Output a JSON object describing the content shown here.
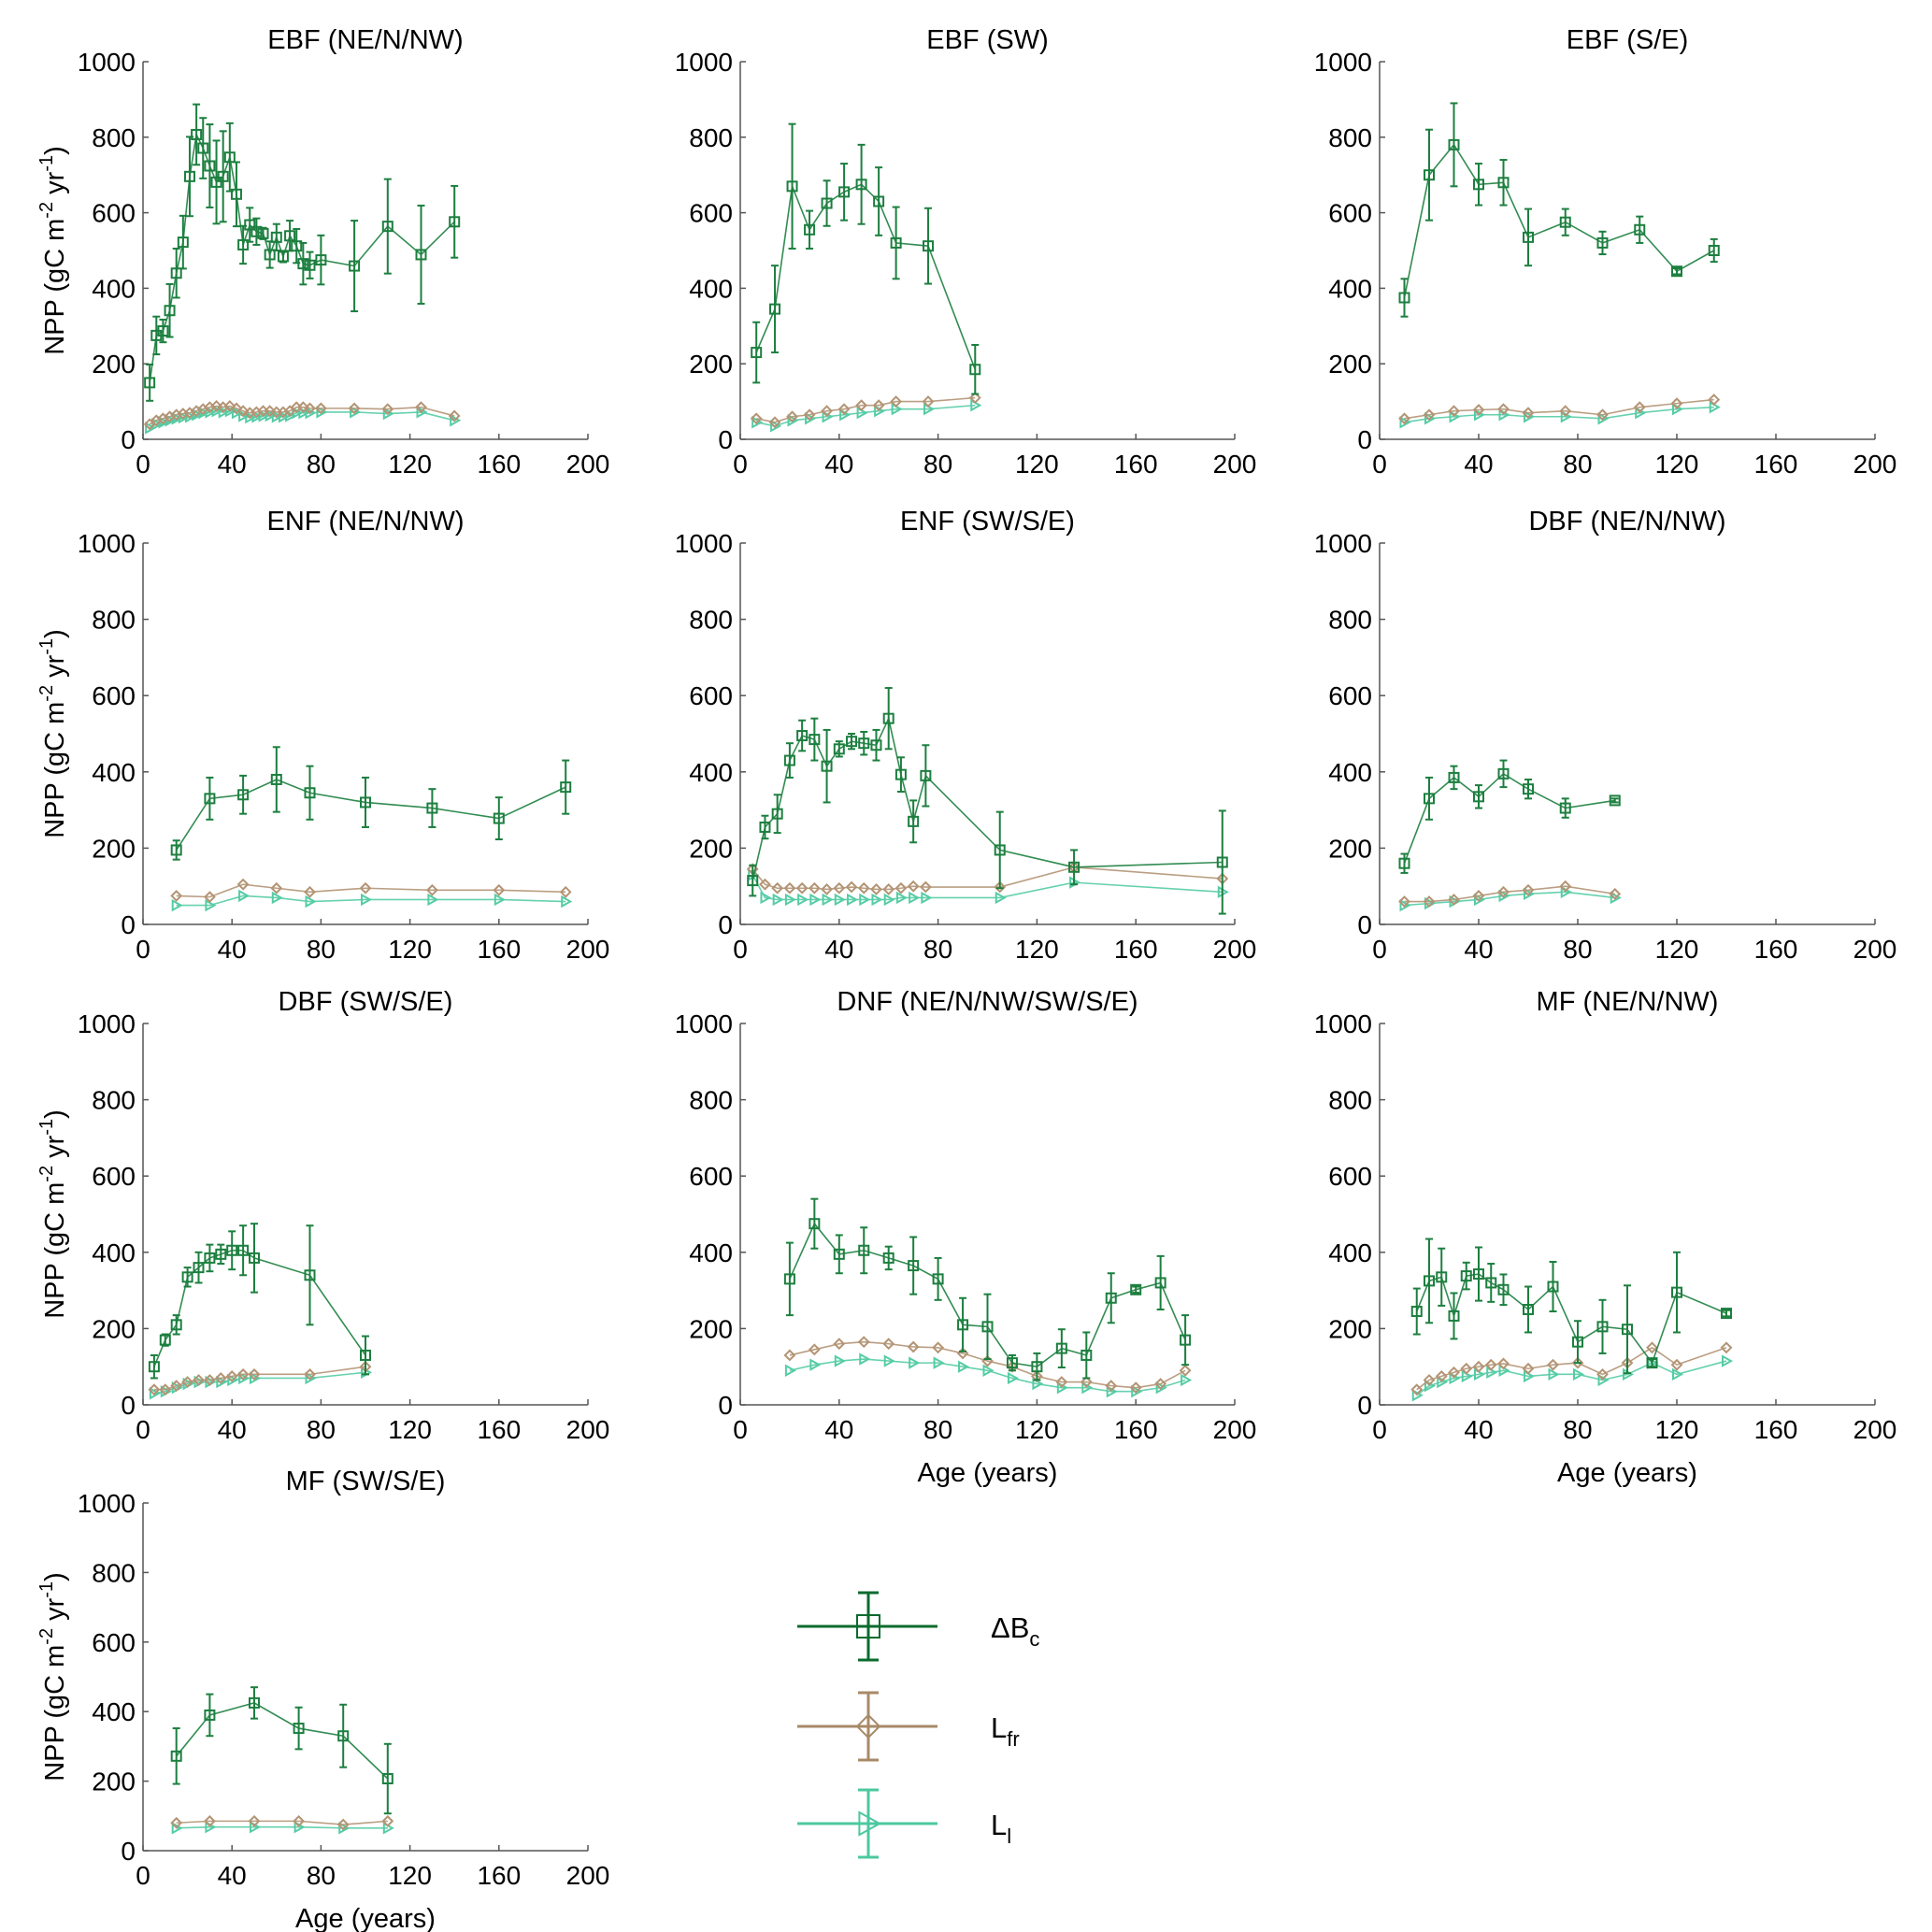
{
  "axis_common": {
    "ylabel_parts": [
      "NPP (gC m",
      "-2",
      " yr",
      "-1",
      ")"
    ],
    "xlabel": "Age (years)",
    "xlim": [
      0,
      200
    ],
    "xticks": [
      0,
      40,
      80,
      120,
      160,
      200
    ],
    "ylim": [
      0,
      1000
    ],
    "yticks": [
      0,
      200,
      400,
      600,
      800,
      1000
    ],
    "grid": false
  },
  "legend": [
    {
      "label": "ΔB",
      "subscript": "c",
      "color": "#0b6b2e",
      "marker": "square"
    },
    {
      "label": "L",
      "subscript": "fr",
      "color": "#a88a68",
      "marker": "diamond"
    },
    {
      "label": "L",
      "subscript": "l",
      "color": "#4cc8a0",
      "marker": "triangle-right"
    }
  ],
  "series_colors": [
    "#1c7f3f",
    "#b39474",
    "#55cca5"
  ],
  "chart_data": [
    {
      "type": "line",
      "title": "EBF (NE/N/NW)",
      "x": [
        3,
        6,
        9,
        12,
        15,
        18,
        21,
        24,
        27,
        30,
        33,
        36,
        39,
        42,
        45,
        48,
        51,
        54,
        57,
        60,
        63,
        66,
        69,
        72,
        75,
        80,
        95,
        110,
        125,
        140
      ],
      "series": [
        {
          "values": [
            150,
            275,
            287,
            341,
            440,
            522,
            696,
            807,
            771,
            724,
            681,
            696,
            747,
            649,
            515,
            568,
            550,
            545,
            489,
            535,
            484,
            539,
            512,
            465,
            461,
            475,
            459,
            564,
            489,
            576
          ],
          "errors": [
            48,
            50,
            30,
            70,
            65,
            70,
            105,
            80,
            80,
            110,
            110,
            120,
            90,
            85,
            50,
            45,
            35,
            15,
            35,
            35,
            15,
            40,
            45,
            55,
            35,
            65,
            120,
            125,
            130,
            95
          ]
        },
        {
          "values": [
            40,
            50,
            55,
            60,
            65,
            68,
            70,
            75,
            80,
            85,
            88,
            85,
            88,
            82,
            75,
            70,
            72,
            75,
            75,
            72,
            72,
            75,
            85,
            85,
            82,
            82,
            82,
            80,
            85,
            62
          ]
        },
        {
          "values": [
            30,
            40,
            45,
            50,
            55,
            58,
            60,
            65,
            70,
            72,
            75,
            72,
            75,
            70,
            62,
            58,
            60,
            62,
            63,
            60,
            60,
            62,
            70,
            70,
            70,
            72,
            72,
            68,
            72,
            50
          ]
        }
      ]
    },
    {
      "type": "line",
      "title": "EBF (SW)",
      "x": [
        6.5,
        14,
        21,
        28,
        35,
        42,
        49,
        56,
        63,
        76,
        95
      ],
      "series": [
        {
          "values": [
            230,
            345,
            670,
            555,
            625,
            655,
            675,
            630,
            520,
            512,
            185
          ],
          "errors": [
            80,
            115,
            165,
            50,
            60,
            75,
            105,
            90,
            95,
            100,
            65
          ]
        },
        {
          "values": [
            55,
            45,
            60,
            65,
            75,
            80,
            90,
            90,
            100,
            100,
            110
          ]
        },
        {
          "values": [
            45,
            35,
            50,
            55,
            60,
            65,
            70,
            75,
            80,
            80,
            90
          ]
        }
      ]
    },
    {
      "type": "line",
      "title": "EBF (S/E)",
      "x": [
        10,
        20,
        30,
        40,
        50,
        60,
        75,
        90,
        105,
        120,
        135
      ],
      "series": [
        {
          "values": [
            375,
            700,
            780,
            675,
            680,
            535,
            575,
            520,
            555,
            445,
            500
          ],
          "errors": [
            50,
            120,
            110,
            55,
            60,
            75,
            35,
            30,
            35,
            8,
            30
          ]
        },
        {
          "values": [
            55,
            65,
            75,
            78,
            80,
            70,
            75,
            65,
            85,
            95,
            105
          ]
        },
        {
          "values": [
            45,
            55,
            60,
            65,
            65,
            60,
            60,
            55,
            70,
            80,
            85
          ]
        }
      ]
    },
    {
      "type": "line",
      "title": "ENF (NE/N/NW)",
      "x": [
        15,
        30,
        45,
        60,
        75,
        100,
        130,
        160,
        190
      ],
      "series": [
        {
          "values": [
            195,
            330,
            340,
            380,
            345,
            320,
            305,
            278,
            360
          ],
          "errors": [
            25,
            55,
            50,
            85,
            70,
            65,
            50,
            55,
            70
          ]
        },
        {
          "values": [
            75,
            72,
            105,
            95,
            85,
            95,
            90,
            90,
            85
          ]
        },
        {
          "values": [
            50,
            50,
            75,
            70,
            60,
            65,
            65,
            65,
            60
          ]
        }
      ]
    },
    {
      "type": "line",
      "title": "ENF (SW/S/E)",
      "x": [
        5,
        10,
        15,
        20,
        25,
        30,
        35,
        40,
        45,
        50,
        55,
        60,
        65,
        70,
        75,
        105,
        135,
        195
      ],
      "series": [
        {
          "values": [
            115,
            255,
            290,
            430,
            495,
            485,
            415,
            460,
            480,
            475,
            470,
            540,
            393,
            270,
            390,
            195,
            150,
            163
          ],
          "errors": [
            40,
            30,
            50,
            45,
            40,
            55,
            95,
            20,
            20,
            30,
            40,
            80,
            45,
            55,
            80,
            100,
            45,
            135
          ]
        },
        {
          "values": [
            145,
            105,
            95,
            95,
            95,
            95,
            92,
            95,
            98,
            95,
            92,
            92,
            95,
            100,
            98,
            98,
            150,
            120
          ]
        },
        {
          "values": [
            130,
            70,
            65,
            65,
            65,
            65,
            65,
            65,
            65,
            65,
            65,
            65,
            70,
            70,
            70,
            70,
            110,
            85
          ]
        }
      ]
    },
    {
      "type": "line",
      "title": "DBF (NE/N/NW)",
      "x": [
        10,
        20,
        30,
        40,
        50,
        60,
        75,
        95
      ],
      "series": [
        {
          "values": [
            160,
            330,
            385,
            335,
            395,
            355,
            305,
            325
          ],
          "errors": [
            25,
            55,
            30,
            30,
            35,
            25,
            25,
            5
          ]
        },
        {
          "values": [
            60,
            60,
            65,
            75,
            85,
            90,
            100,
            80
          ]
        },
        {
          "values": [
            50,
            55,
            60,
            65,
            75,
            80,
            85,
            70
          ]
        }
      ]
    },
    {
      "type": "line",
      "title": "DBF (SW/S/E)",
      "x": [
        5,
        10,
        15,
        20,
        25,
        30,
        35,
        40,
        45,
        50,
        75,
        100
      ],
      "series": [
        {
          "values": [
            100,
            170,
            210,
            335,
            360,
            385,
            395,
            405,
            405,
            385,
            340,
            130
          ],
          "errors": [
            30,
            15,
            25,
            25,
            40,
            35,
            25,
            50,
            65,
            90,
            130,
            50
          ]
        },
        {
          "values": [
            40,
            40,
            50,
            60,
            65,
            65,
            70,
            75,
            80,
            80,
            80,
            100
          ]
        },
        {
          "values": [
            30,
            35,
            45,
            55,
            60,
            60,
            60,
            65,
            70,
            70,
            70,
            85
          ]
        }
      ]
    },
    {
      "type": "line",
      "title": "DNF (NE/N/NW/SW/S/E)",
      "x": [
        20,
        30,
        40,
        50,
        60,
        70,
        80,
        90,
        100,
        110,
        120,
        130,
        140,
        150,
        160,
        170,
        180
      ],
      "series": [
        {
          "values": [
            330,
            475,
            395,
            405,
            385,
            365,
            330,
            210,
            205,
            110,
            100,
            148,
            130,
            280,
            302,
            320,
            170
          ],
          "errors": [
            95,
            65,
            50,
            60,
            30,
            75,
            55,
            70,
            85,
            20,
            35,
            50,
            60,
            65,
            8,
            70,
            65
          ]
        },
        {
          "values": [
            130,
            145,
            160,
            165,
            160,
            152,
            150,
            135,
            115,
            100,
            75,
            60,
            60,
            50,
            45,
            55,
            90
          ]
        },
        {
          "values": [
            90,
            105,
            115,
            120,
            115,
            110,
            110,
            100,
            90,
            70,
            55,
            45,
            45,
            35,
            35,
            45,
            65
          ]
        }
      ]
    },
    {
      "type": "line",
      "title": "MF (NE/N/NW)",
      "x": [
        15,
        20,
        25,
        30,
        35,
        40,
        45,
        50,
        60,
        70,
        80,
        90,
        100,
        110,
        120,
        140
      ],
      "series": [
        {
          "values": [
            245,
            325,
            335,
            233,
            338,
            343,
            320,
            302,
            250,
            310,
            165,
            205,
            198,
            110,
            295,
            240
          ],
          "errors": [
            60,
            110,
            75,
            60,
            35,
            70,
            50,
            40,
            60,
            65,
            55,
            70,
            115,
            10,
            105,
            8
          ]
        },
        {
          "values": [
            40,
            65,
            75,
            85,
            95,
            100,
            105,
            108,
            95,
            105,
            110,
            80,
            110,
            150,
            105,
            150
          ]
        },
        {
          "values": [
            25,
            50,
            60,
            70,
            75,
            80,
            85,
            90,
            75,
            80,
            80,
            65,
            80,
            110,
            80,
            115
          ]
        }
      ]
    },
    {
      "type": "line",
      "title": "MF (SW/S/E)",
      "x": [
        15,
        30,
        50,
        70,
        90,
        110
      ],
      "series": [
        {
          "values": [
            272,
            390,
            425,
            352,
            330,
            207
          ],
          "errors": [
            80,
            60,
            45,
            60,
            90,
            100
          ]
        },
        {
          "values": [
            80,
            85,
            85,
            85,
            75,
            85
          ]
        },
        {
          "values": [
            65,
            68,
            68,
            68,
            65,
            65
          ]
        }
      ]
    }
  ]
}
